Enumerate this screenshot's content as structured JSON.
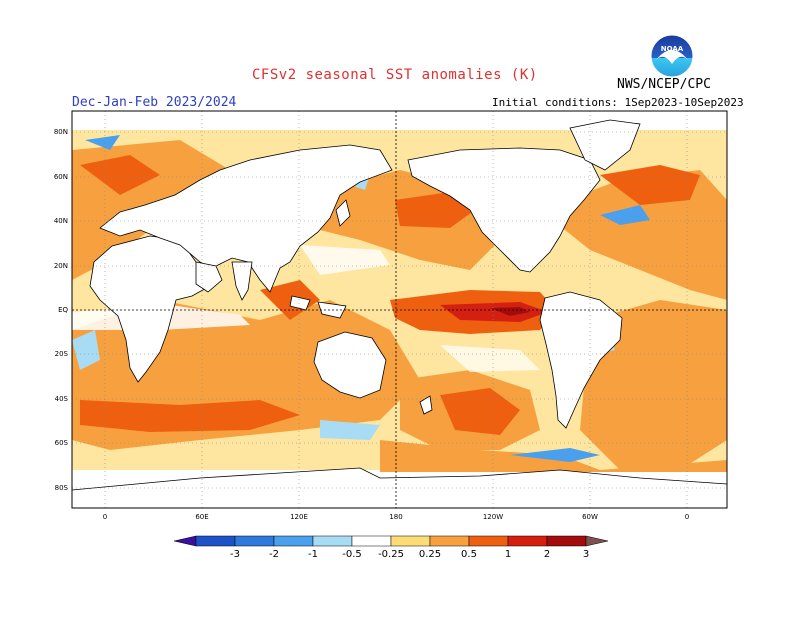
{
  "header": {
    "title": "CFSv2 seasonal SST anomalies (K)",
    "period": "Dec-Jan-Feb 2023/2024",
    "initial_conditions": "Initial conditions: 1Sep2023-10Sep2023",
    "agency": "NWS/NCEP/CPC",
    "logo_text": "NOAA"
  },
  "map": {
    "lat_labels": [
      "80N",
      "60N",
      "40N",
      "20N",
      "EQ",
      "20S",
      "40S",
      "60S",
      "80S"
    ],
    "lon_labels": [
      "0",
      "60E",
      "120E",
      "180",
      "120W",
      "60W",
      "0"
    ]
  },
  "colorbar": {
    "levels": [
      "-3",
      "-2",
      "-1",
      "-0.5",
      "-0.25",
      "0.25",
      "0.5",
      "1",
      "2",
      "3"
    ],
    "colors": [
      "#3b10a0",
      "#1d52c8",
      "#2f78dc",
      "#4aa0ec",
      "#a8dcf4",
      "#ffffff",
      "#fddc78",
      "#f7a040",
      "#ee6010",
      "#d42010",
      "#a40c0c",
      "#805050"
    ]
  }
}
